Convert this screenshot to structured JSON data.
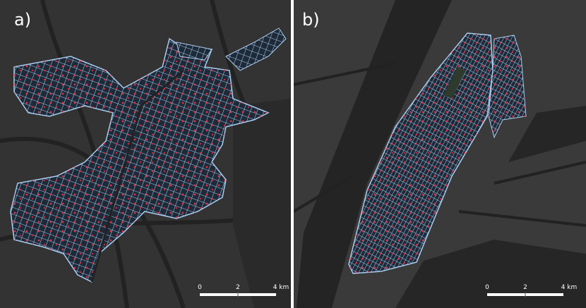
{
  "panels": [
    {
      "label": "a)",
      "scale_bar": {
        "labels": [
          "0",
          "2",
          "4 km"
        ]
      }
    },
    {
      "label": "b)",
      "scale_bar": {
        "labels": [
          "0",
          "2",
          "4 km"
        ]
      }
    }
  ]
}
